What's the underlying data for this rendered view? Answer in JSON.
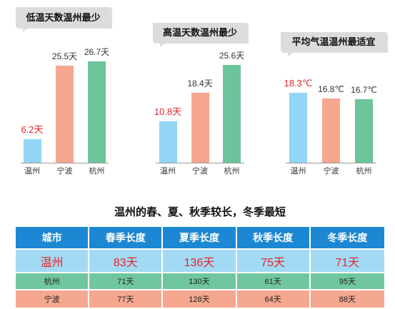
{
  "colors": {
    "title_box": "#dcdcdc",
    "baseline": "#9a9a9a"
  },
  "chart_data": [
    {
      "type": "bar",
      "title": "低温天数温州最少",
      "categories": [
        "温州",
        "宁波",
        "杭州"
      ],
      "values": [
        6.2,
        25.5,
        26.7
      ],
      "value_labels": [
        "6.2天",
        "25.5天",
        "26.7天"
      ],
      "bar_colors": [
        "#93d5f4",
        "#f5a68f",
        "#6cc59a"
      ],
      "label_colors": [
        "#e6252a",
        "#333333",
        "#333333"
      ],
      "ylim": [
        0,
        30
      ],
      "grid": false
    },
    {
      "type": "bar",
      "title": "高温天数温州最少",
      "categories": [
        "温州",
        "宁波",
        "杭州"
      ],
      "values": [
        10.8,
        18.4,
        25.6
      ],
      "value_labels": [
        "10.8天",
        "18.4天",
        "25.6天"
      ],
      "bar_colors": [
        "#93d5f4",
        "#f5a68f",
        "#6cc59a"
      ],
      "label_colors": [
        "#e6252a",
        "#333333",
        "#333333"
      ],
      "ylim": [
        0,
        30
      ],
      "grid": false
    },
    {
      "type": "bar",
      "title": "平均气温温州最适宜",
      "categories": [
        "温州",
        "宁波",
        "杭州"
      ],
      "values": [
        18.3,
        16.8,
        16.7
      ],
      "value_labels": [
        "18.3℃",
        "16.8℃",
        "16.7℃"
      ],
      "bar_colors": [
        "#93d5f4",
        "#f5a68f",
        "#6cc59a"
      ],
      "label_colors": [
        "#e6252a",
        "#333333",
        "#333333"
      ],
      "ylim": [
        0,
        30
      ],
      "grid": false
    },
    {
      "type": "table",
      "title": "温州的春、夏、秋季较长，冬季最短",
      "columns": [
        "城市",
        "春季长度",
        "夏季长度",
        "秋季长度",
        "冬季长度"
      ],
      "rows": [
        [
          "温州",
          "83天",
          "136天",
          "75天",
          "71天"
        ],
        [
          "杭州",
          "71天",
          "130天",
          "61天",
          "95天"
        ],
        [
          "宁波",
          "77天",
          "128天",
          "64天",
          "88天"
        ]
      ],
      "header_color": "#1c88d3",
      "header_text_color": "#ffffff",
      "row_colors": [
        "#a2daf4",
        "#70c79d",
        "#f5a78f"
      ],
      "row_text_colors": [
        "#e6252a",
        "#222222",
        "#222222"
      ]
    }
  ]
}
